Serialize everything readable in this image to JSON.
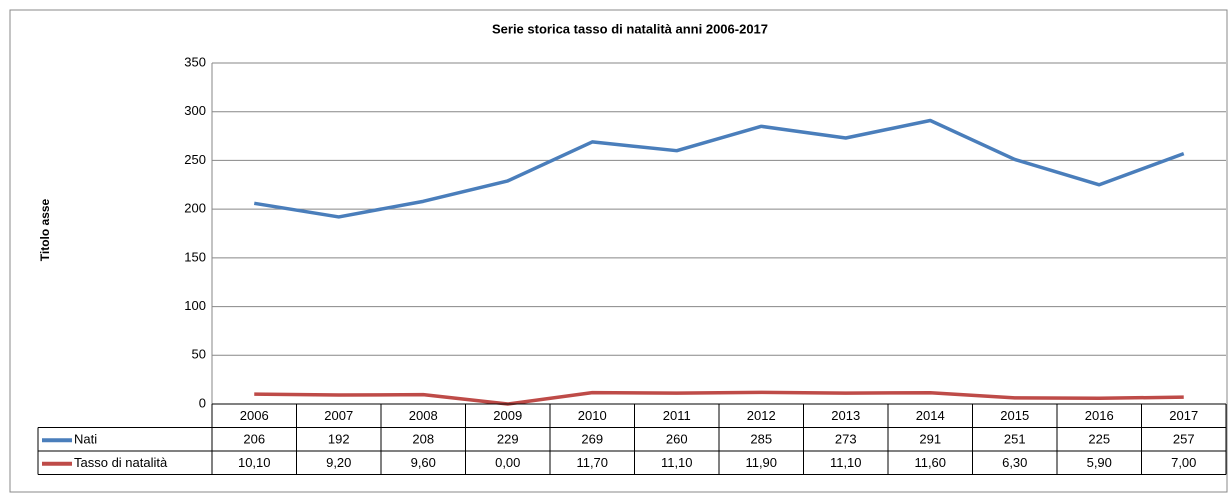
{
  "chart_data": {
    "type": "line",
    "title": "Serie storica tasso di natalità anni 2006-2017",
    "y_label": "Titolo asse",
    "categories": [
      "2006",
      "2007",
      "2008",
      "2009",
      "2010",
      "2011",
      "2012",
      "2013",
      "2014",
      "2015",
      "2016",
      "2017"
    ],
    "series": [
      {
        "name": "Nati",
        "color": "#4a7ebb",
        "values": [
          206,
          192,
          208,
          229,
          269,
          260,
          285,
          273,
          291,
          251,
          225,
          257
        ]
      },
      {
        "name": "Tasso di natalità",
        "color": "#be4b48",
        "values": [
          10.1,
          9.2,
          9.6,
          0,
          11.7,
          11.1,
          11.9,
          11.1,
          11.6,
          6.3,
          5.9,
          7.0
        ],
        "value_labels": [
          "10,10",
          "9,20",
          "9,60",
          "0,00",
          "11,70",
          "11,10",
          "11,90",
          "11,10",
          "11,60",
          "6,30",
          "5,90",
          "7,00"
        ]
      }
    ],
    "ylim": [
      0,
      350
    ],
    "yticks": [
      0,
      50,
      100,
      150,
      200,
      250,
      300,
      350
    ],
    "grid": true,
    "data_table": true
  }
}
